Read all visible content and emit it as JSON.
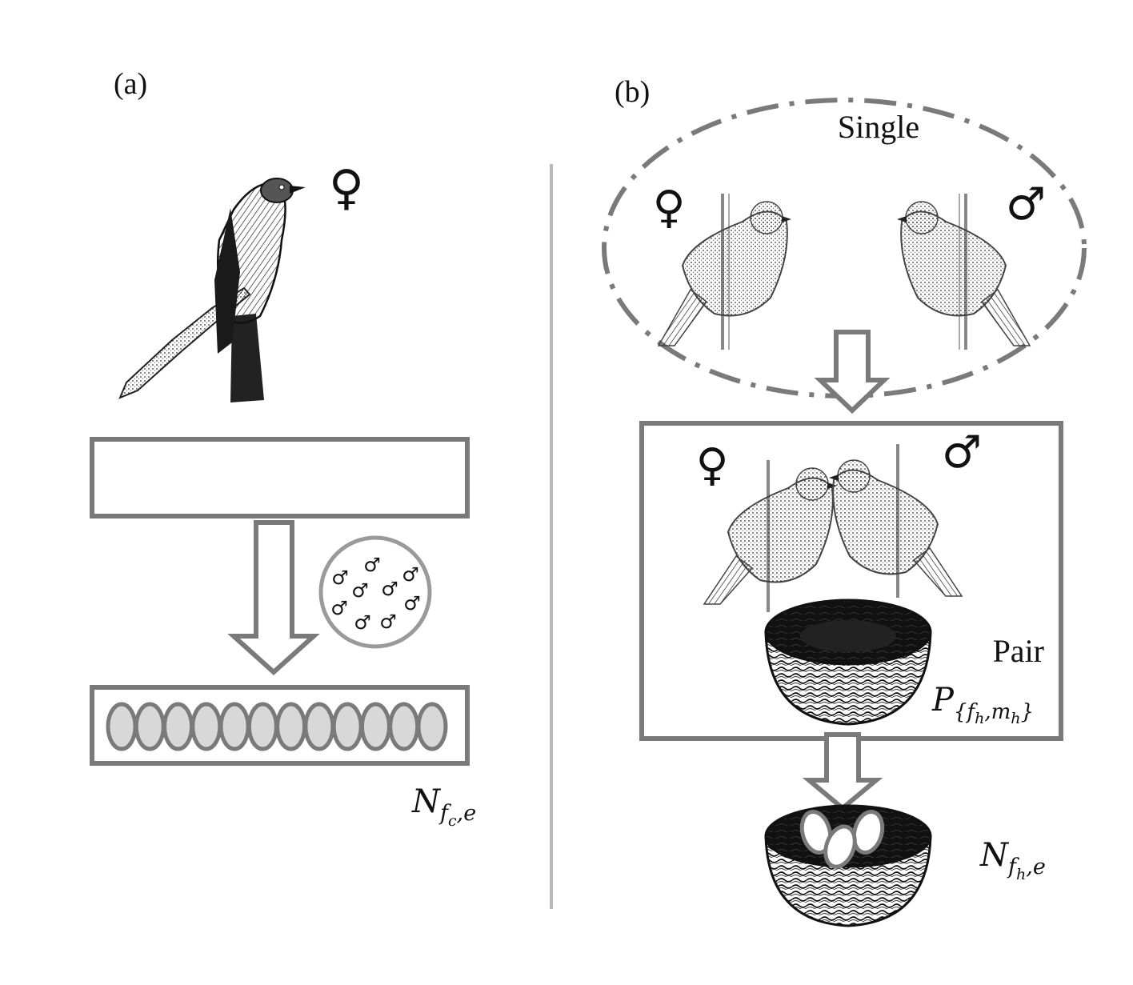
{
  "panels": {
    "a": {
      "label": "(a)",
      "female_symbol": "♀",
      "male_symbols": [
        "♂",
        "♂",
        "♂",
        "♂",
        "♂",
        "♂",
        "♂",
        "♂",
        "♂",
        "♂"
      ],
      "egg_count": 12,
      "egg_label": {
        "base": "N",
        "sub1": "f",
        "sub2": "c",
        "tail": ",e"
      }
    },
    "b": {
      "label": "(b)",
      "single_label": "Single",
      "single_female_symbol": "♀",
      "single_male_symbol": "♂",
      "pair_label": "Pair",
      "pair_female_symbol": "♀",
      "pair_male_symbol": "♂",
      "pair_prob_label": {
        "base": "P",
        "sub": "{f",
        "sub_h1": "h",
        "mid": ",m",
        "sub_h2": "h",
        "close": "}"
      },
      "egg_count": 3,
      "egg_label": {
        "base": "N",
        "sub1": "f",
        "sub2": "h",
        "tail": ",e"
      }
    }
  },
  "colors": {
    "box_stroke": "#7a7a7a",
    "egg_fill": "#d8d8d8",
    "divider": "#b8b8b8",
    "ink": "#111111"
  }
}
